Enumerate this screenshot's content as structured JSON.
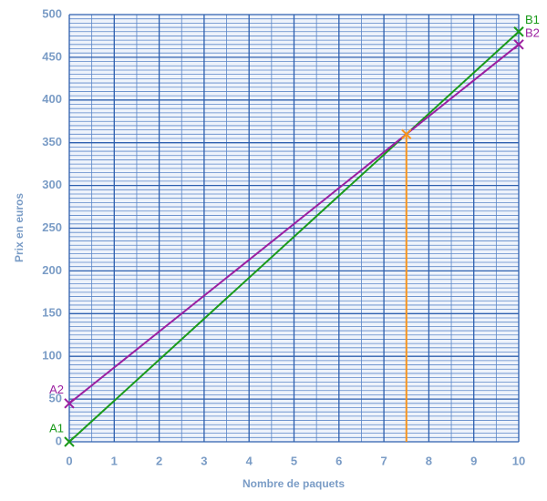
{
  "chart_data": {
    "type": "line",
    "xlabel": "Nombre de paquets",
    "ylabel": "Prix en euros",
    "xlim": [
      0,
      10
    ],
    "xticks": [
      0,
      1,
      2,
      3,
      4,
      5,
      6,
      7,
      8,
      9,
      10
    ],
    "ylim": [
      0,
      500
    ],
    "yticks": [
      0,
      50,
      100,
      150,
      200,
      250,
      300,
      350,
      400,
      450,
      500
    ],
    "grid": true,
    "series": [
      {
        "color": "#1a9a1a",
        "x": [
          0,
          10
        ],
        "values": [
          0,
          480
        ],
        "point_labels": [
          "A1",
          "B1"
        ]
      },
      {
        "color": "#9b1fa0",
        "x": [
          0,
          10
        ],
        "values": [
          45,
          465
        ],
        "point_labels": [
          "A2",
          "B2"
        ]
      }
    ],
    "intersection": {
      "x": 7.5,
      "y": 360,
      "color": "#f7941d"
    }
  }
}
